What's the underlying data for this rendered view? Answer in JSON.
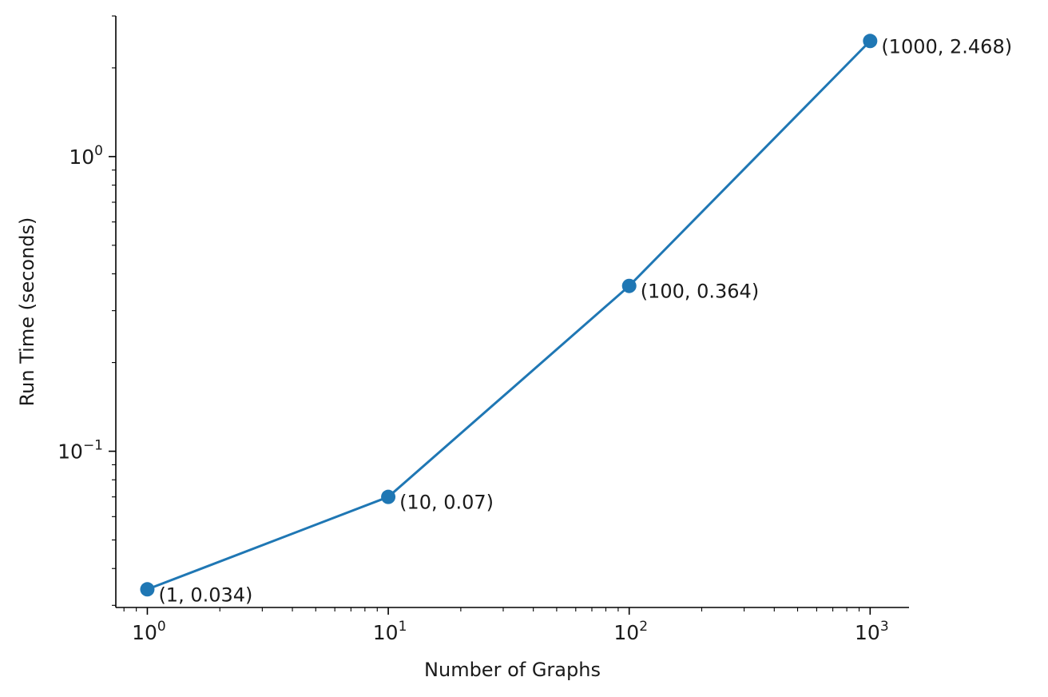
{
  "chart_data": {
    "type": "line",
    "title": "",
    "xlabel": "Number of Graphs",
    "ylabel": "Run Time (seconds)",
    "x_scale": "log",
    "y_scale": "log",
    "xlim": [
      0.74,
      1450
    ],
    "ylim": [
      0.0295,
      3.0
    ],
    "x_ticks": [
      {
        "value": 1,
        "base": "10",
        "exp": "0"
      },
      {
        "value": 10,
        "base": "10",
        "exp": "1"
      },
      {
        "value": 100,
        "base": "10",
        "exp": "2"
      },
      {
        "value": 1000,
        "base": "10",
        "exp": "3"
      }
    ],
    "y_ticks": [
      {
        "value": 0.1,
        "base": "10",
        "exp": "−1"
      },
      {
        "value": 1,
        "base": "10",
        "exp": "0"
      }
    ],
    "grid": false,
    "series": [
      {
        "color": "#1f77b4",
        "marker": "circle",
        "x": [
          1,
          10,
          100,
          1000
        ],
        "y": [
          0.034,
          0.07,
          0.364,
          2.468
        ],
        "labels": [
          "(1, 0.034)",
          "(10, 0.07)",
          "(100, 0.364)",
          "(1000, 2.468)"
        ]
      }
    ]
  }
}
